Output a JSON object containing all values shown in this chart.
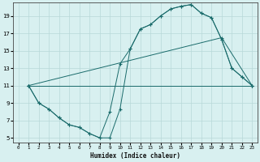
{
  "xlabel": "Humidex (Indice chaleur)",
  "bg_color": "#d8f0f0",
  "grid_color": "#b8d8d8",
  "line_color": "#1a6b6b",
  "xlim": [
    -0.5,
    23.5
  ],
  "ylim": [
    4.5,
    20.5
  ],
  "xticks": [
    0,
    1,
    2,
    3,
    4,
    5,
    6,
    7,
    8,
    9,
    10,
    11,
    12,
    13,
    14,
    15,
    16,
    17,
    18,
    19,
    20,
    21,
    22,
    23
  ],
  "yticks": [
    5,
    7,
    9,
    11,
    13,
    15,
    17,
    19
  ],
  "line1_x": [
    1,
    2,
    3,
    4,
    5,
    6,
    7,
    8,
    9,
    10,
    11,
    12,
    13,
    14,
    15,
    16,
    17,
    18,
    19,
    20,
    21,
    22,
    23
  ],
  "line1_y": [
    11,
    9,
    8.3,
    7.3,
    6.5,
    6.2,
    5.5,
    5.0,
    5.0,
    8.3,
    15.2,
    17.5,
    18.0,
    19.0,
    19.8,
    20.1,
    20.3,
    19.3,
    18.8,
    16.3,
    13.0,
    12.0,
    11.0
  ],
  "line2_x": [
    1,
    2,
    3,
    4,
    5,
    6,
    7,
    8,
    9,
    10,
    11,
    12,
    13,
    14,
    15,
    16,
    17,
    18,
    19,
    20,
    21,
    22,
    23
  ],
  "line2_y": [
    11,
    9,
    8.3,
    7.3,
    6.5,
    6.2,
    5.5,
    5.0,
    8.0,
    13.5,
    15.2,
    17.5,
    18.0,
    19.0,
    19.8,
    20.1,
    20.3,
    19.3,
    18.8,
    16.3,
    13.0,
    12.0,
    11.0
  ],
  "line3_x": [
    1,
    23
  ],
  "line3_y": [
    11,
    11
  ],
  "line4_x": [
    1,
    20,
    23
  ],
  "line4_y": [
    11,
    16.5,
    11
  ]
}
